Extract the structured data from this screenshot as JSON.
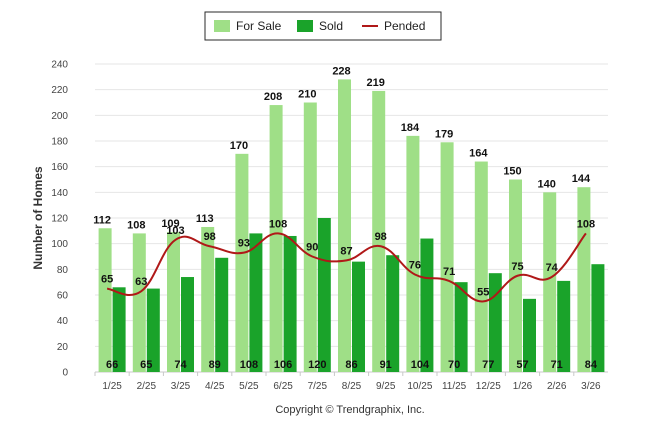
{
  "chart_data": {
    "type": "bar",
    "title": "",
    "xlabel": "",
    "ylabel": "Number of Homes",
    "ylim": [
      0,
      240
    ],
    "yticks": [
      0,
      20,
      40,
      60,
      80,
      100,
      120,
      140,
      160,
      180,
      200,
      220,
      240
    ],
    "grid": true,
    "legend_position": "top-center",
    "categories": [
      "1/25",
      "2/25",
      "3/25",
      "4/25",
      "5/25",
      "6/25",
      "7/25",
      "8/25",
      "9/25",
      "10/25",
      "11/25",
      "12/25",
      "1/26",
      "2/26",
      "3/26"
    ],
    "series": [
      {
        "name": "For Sale",
        "kind": "bar",
        "color": "#9fdf87",
        "values": [
          112,
          108,
          109,
          113,
          170,
          208,
          210,
          228,
          219,
          184,
          179,
          164,
          150,
          140,
          144
        ]
      },
      {
        "name": "Sold",
        "kind": "bar",
        "color": "#1aa32a",
        "values": [
          66,
          65,
          74,
          89,
          108,
          106,
          120,
          86,
          91,
          104,
          70,
          77,
          57,
          71,
          84
        ]
      },
      {
        "name": "Pended",
        "kind": "line",
        "color": "#b01818",
        "values": [
          65,
          63,
          103,
          98,
          93,
          108,
          90,
          87,
          98,
          76,
          71,
          55,
          75,
          74,
          108
        ]
      }
    ],
    "footer": "Copyright © Trendgraphix, Inc."
  }
}
